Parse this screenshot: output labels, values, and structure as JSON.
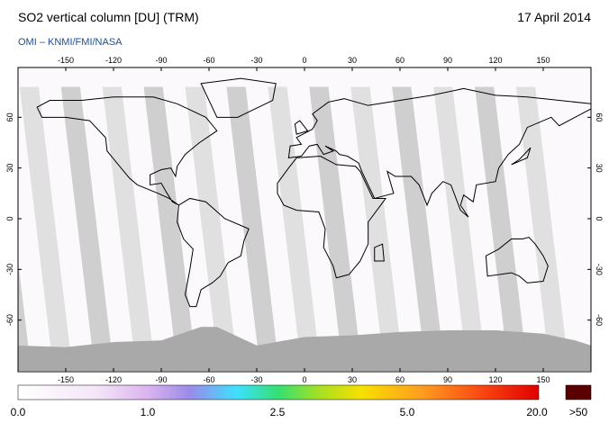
{
  "header": {
    "title": "SO2 vertical column [DU] (TRM)",
    "date": "17 April 2014",
    "source": "OMI  –  KNMI/FMI/NASA"
  },
  "map": {
    "lon_ticks": [
      -150,
      -120,
      -90,
      -60,
      -30,
      0,
      30,
      60,
      90,
      120,
      150
    ],
    "lat_ticks": [
      60,
      30,
      0,
      -30,
      -60
    ]
  },
  "colorbar": {
    "labels": [
      "0.0",
      "1.0",
      "2.5",
      "5.0",
      "20.0",
      ">50"
    ]
  }
}
